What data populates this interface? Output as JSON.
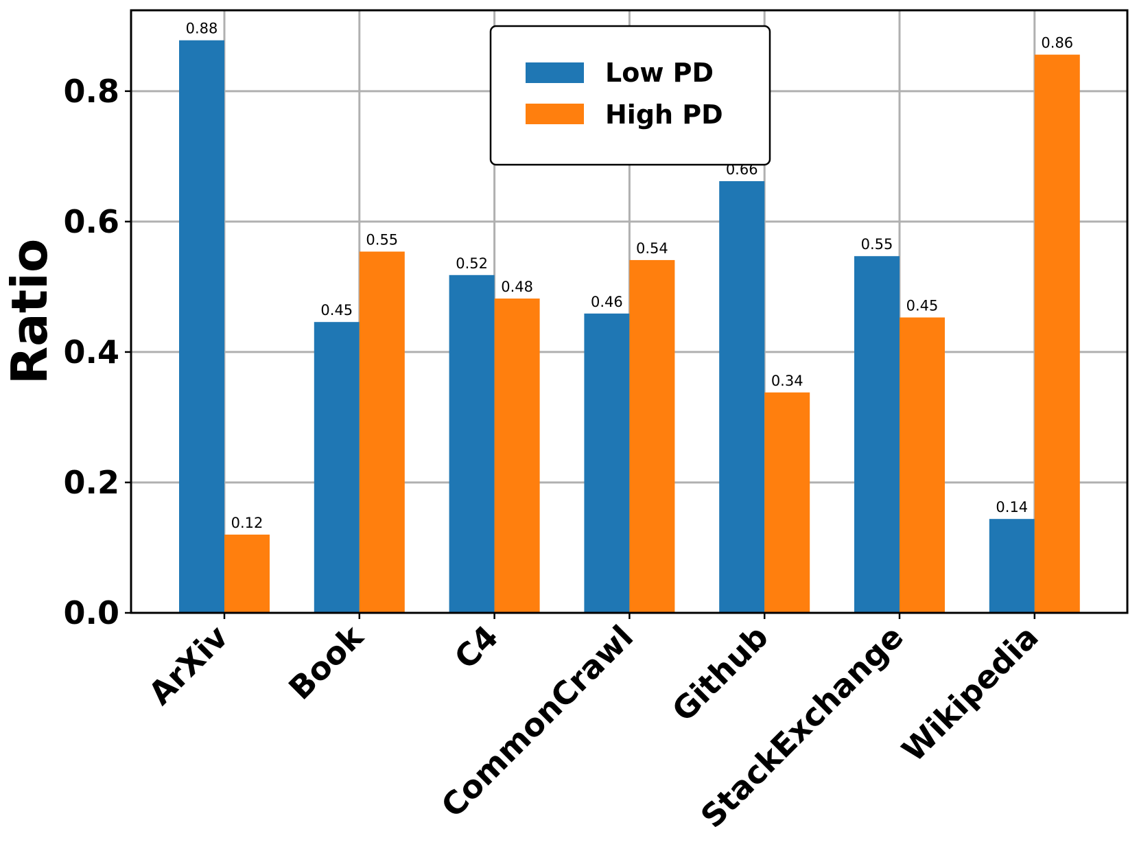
{
  "chart_data": {
    "type": "bar",
    "title": "",
    "xlabel": "",
    "ylabel": "Ratio",
    "ylim": [
      0,
      0.924
    ],
    "yticks": [
      "0.0",
      "0.2",
      "0.4",
      "0.6",
      "0.8"
    ],
    "ytick_values": [
      0,
      0.2,
      0.4,
      0.6,
      0.8
    ],
    "grid": true,
    "legend_position": "top-center",
    "categories": [
      "ArXiv",
      "Book",
      "C4",
      "CommonCrawl",
      "Github",
      "StackExchange",
      "Wikipedia"
    ],
    "series": [
      {
        "name": "Low PD",
        "color": "#1f77b4",
        "values": [
          0.878,
          0.446,
          0.518,
          0.459,
          0.662,
          0.547,
          0.144
        ],
        "labels": [
          "0.88",
          "0.45",
          "0.52",
          "0.46",
          "0.66",
          "0.55",
          "0.14"
        ]
      },
      {
        "name": "High PD",
        "color": "#ff7f0e",
        "values": [
          0.12,
          0.554,
          0.482,
          0.541,
          0.338,
          0.453,
          0.856
        ],
        "labels": [
          "0.12",
          "0.55",
          "0.48",
          "0.54",
          "0.34",
          "0.45",
          "0.86"
        ]
      }
    ]
  }
}
